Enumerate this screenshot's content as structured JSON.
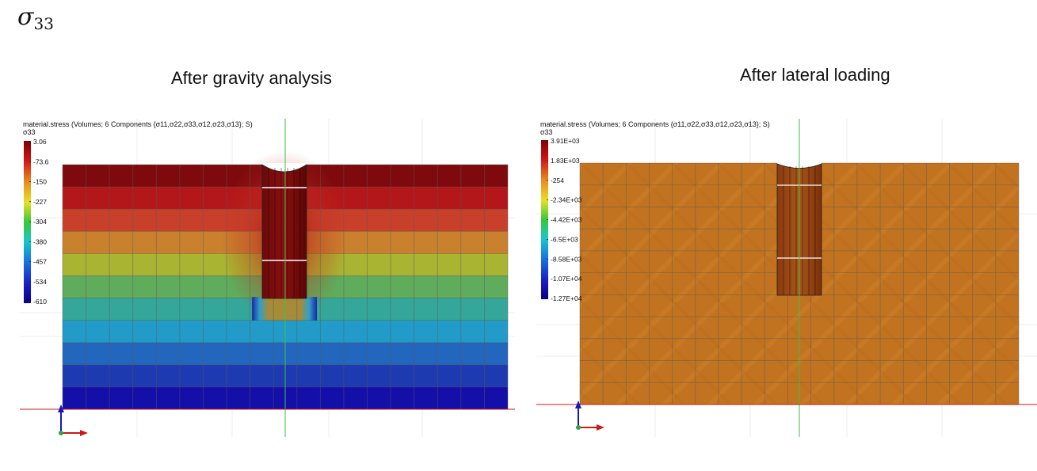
{
  "heading": {
    "symbol": "σ",
    "subscript": "33"
  },
  "panels": [
    {
      "title": "After gravity analysis",
      "legend_header": "material.stress (Volumes; 6 Components {σ11,σ22,σ33,σ12,σ23,σ13}; S)",
      "legend_component": "σ33",
      "legend_ticks": [
        "3.06",
        "-73.6",
        "-150",
        "-227",
        "-304",
        "-380",
        "-457",
        "-534",
        "-610"
      ]
    },
    {
      "title": "After lateral loading",
      "legend_header": "material.stress (Volumes; 6 Components {σ11,σ22,σ33,σ12,σ23,σ13}; S)",
      "legend_component": "σ33",
      "legend_ticks": [
        "3.91E+03",
        "1.83E+03",
        "-254",
        "-2.34E+03",
        "-4.42E+03",
        "-6.5E+03",
        "-8.58E+03",
        "-1.07E+04",
        "-1.27E+04"
      ]
    }
  ],
  "colors": {
    "colormap": [
      "#7f0a0d",
      "#b4171a",
      "#c8402a",
      "#c9812e",
      "#a9b432",
      "#5fac5c",
      "#34a79a",
      "#229bc9",
      "#2366bd",
      "#1d3ab1",
      "#140fa8"
    ],
    "soil_after_loading": "#c2731f",
    "axis_red": "#c81a1a",
    "axis_green": "#3cc24a",
    "axis_blue": "#1418b8"
  }
}
